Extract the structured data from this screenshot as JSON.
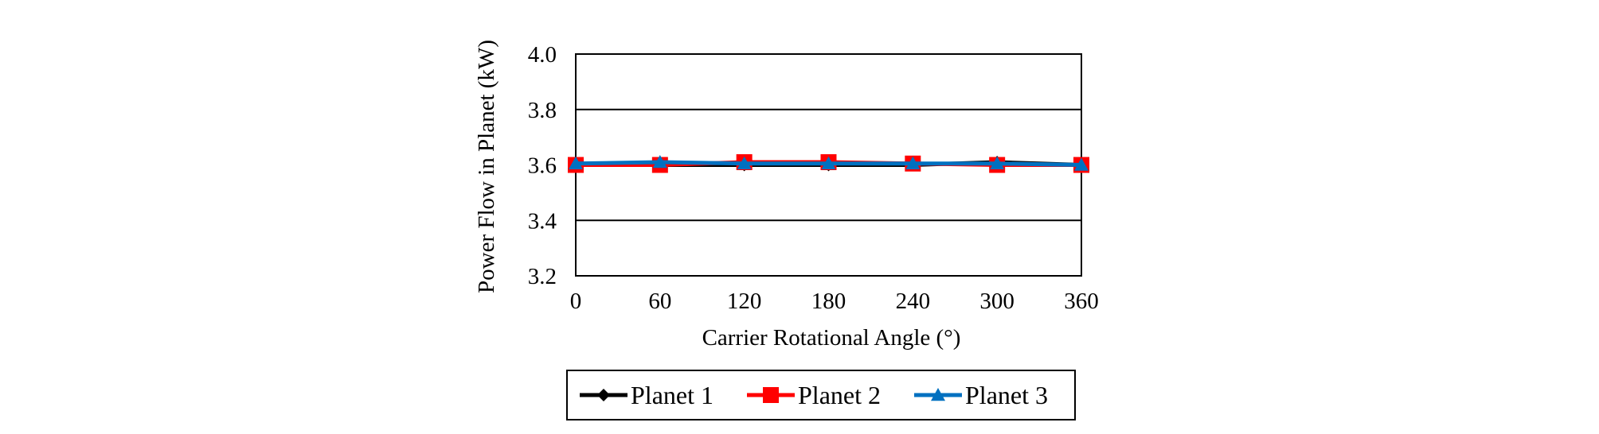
{
  "chart_data": {
    "type": "line",
    "title": "",
    "xlabel": "Carrier Rotational Angle (°)",
    "ylabel": "Power Flow in Planet (kW)",
    "x": [
      0,
      60,
      120,
      180,
      240,
      300,
      360
    ],
    "xticks": [
      "0",
      "60",
      "120",
      "180",
      "240",
      "300",
      "360"
    ],
    "yticks": [
      "3.2",
      "3.4",
      "3.6",
      "3.8",
      "4.0"
    ],
    "xlim": [
      0,
      360
    ],
    "ylim": [
      3.2,
      4.0
    ],
    "grid": "horizontal",
    "legend_position": "bottom",
    "series": [
      {
        "name": "Planet 1",
        "color": "#000000",
        "marker": "diamond",
        "values": [
          3.6,
          3.6,
          3.6,
          3.6,
          3.6,
          3.61,
          3.6
        ]
      },
      {
        "name": "Planet 2",
        "color": "#ff0000",
        "marker": "square",
        "values": [
          3.6,
          3.6,
          3.61,
          3.61,
          3.605,
          3.6,
          3.6
        ]
      },
      {
        "name": "Planet 3",
        "color": "#0070c0",
        "marker": "triangle",
        "values": [
          3.605,
          3.61,
          3.605,
          3.605,
          3.605,
          3.605,
          3.6
        ]
      }
    ]
  }
}
